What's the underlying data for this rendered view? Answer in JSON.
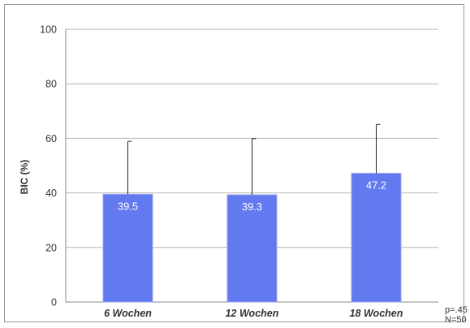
{
  "chart_data": {
    "type": "bar",
    "categories": [
      "6 Wochen",
      "12 Wochen",
      "18 Wochen"
    ],
    "values": [
      39.5,
      39.3,
      47.2
    ],
    "data_labels": [
      "39.5",
      "39.3",
      "47.2"
    ],
    "error_upper": [
      58.9,
      59.9,
      65.1
    ],
    "title": "",
    "xlabel": "",
    "ylabel": "BIC (%)",
    "ylim": [
      0,
      100
    ],
    "yticks": [
      0,
      20,
      40,
      60,
      80,
      100
    ],
    "grid": true,
    "legend": "none",
    "colors": {
      "bar": "#6379f0",
      "bar_border": "#9aa6ee",
      "grid": "#b5b5b5",
      "axis_text": "#333333",
      "data_label": "#ffffff",
      "error_bar": "#222222"
    }
  },
  "stats": {
    "p_value": "p=.45",
    "n": "N=50"
  }
}
